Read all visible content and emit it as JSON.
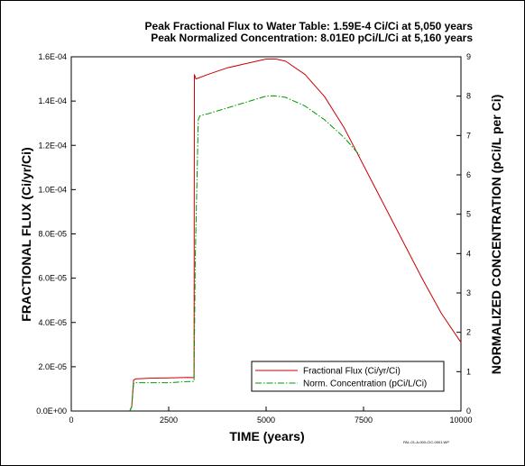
{
  "chart_data": {
    "type": "line",
    "header_line1": "Peak Fractional Flux to Water Table: 1.59E-4 Ci/Ci at 5,050 years",
    "header_line2": "Peak Normalized Concentration:   8.01E0 pCi/L/Ci at 5,160 years",
    "xlabel": "TIME (years)",
    "ylabel_left": "FRACTIONAL FLUX (Ci/yr/Ci)",
    "ylabel_right": "NORMALIZED CONCENTRATION (pCi/L per Ci)",
    "xlim": [
      0,
      10000
    ],
    "ylim_left": [
      0,
      0.00016
    ],
    "ylim_right": [
      0,
      9
    ],
    "x_ticks": [
      "0",
      "2500",
      "5000",
      "7500",
      "10000"
    ],
    "left_ticks": [
      "0.0E+00",
      "2.0E-05",
      "4.0E-05",
      "6.0E-05",
      "8.0E-05",
      "1.0E-04",
      "1.2E-04",
      "1.4E-04",
      "1.6E-04"
    ],
    "right_ticks": [
      "0",
      "1",
      "2",
      "3",
      "4",
      "5",
      "6",
      "7",
      "8",
      "9"
    ],
    "legend_position": "bottom-right",
    "grid": false,
    "footer_code": "PAL-01-A-000-CIC-0001.WP",
    "series": [
      {
        "name": "Fractional Flux (Ci/yr/Ci)",
        "axis": "left",
        "color": "#cc0000",
        "dash": "solid",
        "x": [
          1500,
          1550,
          1600,
          1650,
          2000,
          2500,
          3000,
          3150,
          3160,
          3200,
          3500,
          4000,
          4500,
          5000,
          5250,
          5500,
          6000,
          6500,
          7000,
          7500,
          8000,
          8500,
          9000,
          9500,
          10000
        ],
        "y": [
          0,
          2e-06,
          1.4e-05,
          1.45e-05,
          1.48e-05,
          1.5e-05,
          1.52e-05,
          1.51e-05,
          0.000152,
          0.00015,
          0.000152,
          0.000155,
          0.000157,
          0.000159,
          0.000159,
          0.000158,
          0.000152,
          0.000142,
          0.000128,
          0.000111,
          9.4e-05,
          7.7e-05,
          6e-05,
          4.4e-05,
          3.1e-05
        ]
      },
      {
        "name": "Norm. Concentration (pCi/L/Ci)",
        "axis": "right",
        "color": "#009900",
        "dash": "dashdot",
        "x": [
          1500,
          1550,
          1600,
          1650,
          2000,
          2500,
          3000,
          3150,
          3180,
          3260,
          3300,
          3500,
          4000,
          4500,
          5000,
          5200,
          5500,
          6000,
          6500,
          7000,
          7400
        ],
        "y": [
          0,
          0.1,
          0.7,
          0.72,
          0.72,
          0.72,
          0.75,
          0.75,
          3.8,
          7.4,
          7.5,
          7.55,
          7.7,
          7.85,
          8.0,
          8.01,
          7.97,
          7.75,
          7.4,
          6.95,
          6.5
        ]
      }
    ]
  }
}
